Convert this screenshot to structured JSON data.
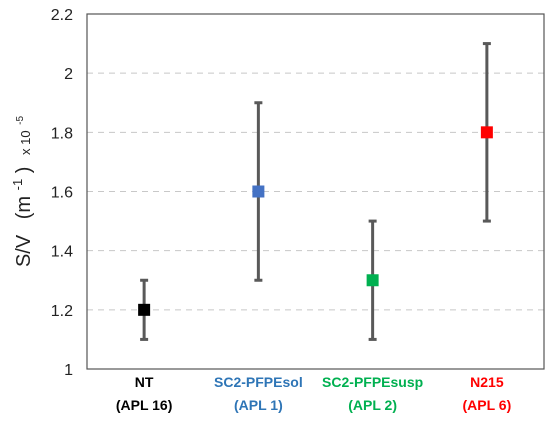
{
  "chart_data": {
    "type": "scatter",
    "ylabel": {
      "main": "S/V",
      "unit_open": "(m",
      "unit_sup": "-1",
      "unit_close": ")",
      "factor": "x 10",
      "factor_sup": "-5"
    },
    "ylim": [
      1.0,
      2.2
    ],
    "yticks": [
      "1",
      "1.2",
      "1.4",
      "1.6",
      "1.8",
      "2",
      "2.2"
    ],
    "grid": true,
    "points": [
      {
        "line1": "NT",
        "line2": "(APL 16)",
        "value": 1.2,
        "err_low": 1.1,
        "err_high": 1.3,
        "color": "#000000",
        "label_color": "#000000"
      },
      {
        "line1": "SC2-PFPEsol",
        "line2": "(APL 1)",
        "value": 1.6,
        "err_low": 1.3,
        "err_high": 1.9,
        "color": "#4472c4",
        "label_color": "#2e75b6"
      },
      {
        "line1": "SC2-PFPEsusp",
        "line2": "(APL 2)",
        "value": 1.3,
        "err_low": 1.1,
        "err_high": 1.5,
        "color": "#00b050",
        "label_color": "#00b050"
      },
      {
        "line1": "N215",
        "line2": "(APL 6)",
        "value": 1.8,
        "err_low": 1.5,
        "err_high": 2.1,
        "color": "#ff0000",
        "label_color": "#ff0000"
      }
    ]
  }
}
